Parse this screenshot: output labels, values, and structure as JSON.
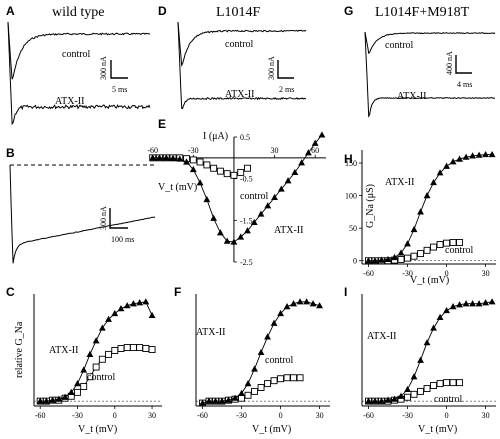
{
  "chart_data": [
    {
      "panel": "A",
      "type": "line",
      "title": "wild type",
      "traces": [
        {
          "name": "control",
          "form": "decay",
          "level": 0.2
        },
        {
          "name": "ATX-II",
          "form": "sustained",
          "level": 0.8
        }
      ],
      "scale_bars": {
        "y": "300 nA",
        "x": "5 ms"
      }
    },
    {
      "panel": "B",
      "type": "line",
      "traces": [
        {
          "form": "long",
          "level": 0.8
        }
      ],
      "zero_line": true,
      "scale_bars": {
        "y": "300 nA",
        "x": "100 ms"
      }
    },
    {
      "panel": "D",
      "type": "line",
      "title": "L1014F",
      "traces": [
        {
          "name": "control",
          "form": "decay",
          "level": 0.2
        },
        {
          "name": "ATX-II",
          "form": "sustained",
          "level": 0.85
        }
      ],
      "scale_bars": {
        "y": "300 nA",
        "x": "2 ms"
      }
    },
    {
      "panel": "G",
      "type": "line",
      "title": "L1014F+M918T",
      "traces": [
        {
          "name": "control",
          "form": "decay",
          "level": 0.05
        },
        {
          "name": "ATX-II",
          "form": "sustained",
          "level": 0.75
        }
      ],
      "scale_bars": {
        "y": "400 nA",
        "x": "4 ms"
      }
    },
    {
      "panel": "E",
      "type": "scatter",
      "xlabel": "V_t (mV)",
      "ylabel": "I (μA)",
      "xlim": [
        -62,
        68
      ],
      "ylim": [
        -2.5,
        0.5
      ],
      "xticks": [
        -60,
        -30,
        0,
        30,
        60
      ],
      "xtick_labels": [
        "-60",
        "-30",
        "0",
        "30",
        "60"
      ],
      "yticks": [
        0.5,
        -0.5,
        -1.5,
        -2.5
      ],
      "ytick_labels": [
        "0.5",
        "-0.5",
        "-1.5",
        "-2.5"
      ],
      "series": [
        {
          "name": "control",
          "marker": "open-square",
          "x": [
            -60,
            -55,
            -50,
            -45,
            -40,
            -35,
            -30,
            -25,
            -20,
            -15,
            -10,
            -5,
            0,
            5,
            10
          ],
          "y": [
            0,
            0,
            0,
            0,
            0,
            -0.02,
            -0.05,
            -0.1,
            -0.17,
            -0.25,
            -0.32,
            -0.38,
            -0.42,
            -0.35,
            -0.25
          ]
        },
        {
          "name": "ATX-II",
          "marker": "filled-triangle",
          "x": [
            -60,
            -55,
            -50,
            -45,
            -40,
            -35,
            -30,
            -25,
            -20,
            -15,
            -10,
            -5,
            0,
            5,
            10,
            15,
            20,
            25,
            30,
            35,
            40,
            45,
            50,
            55,
            60,
            65
          ],
          "y": [
            0,
            0,
            0,
            -0.01,
            -0.03,
            -0.1,
            -0.28,
            -0.6,
            -1.0,
            -1.45,
            -1.8,
            -2.0,
            -2.02,
            -1.9,
            -1.75,
            -1.55,
            -1.35,
            -1.15,
            -0.95,
            -0.75,
            -0.55,
            -0.35,
            -0.12,
            0.12,
            0.35,
            0.55
          ]
        }
      ]
    },
    {
      "panel": "C",
      "type": "scatter",
      "xlabel": "V_t (mV)",
      "ylabel": "relative G_Na",
      "xlim": [
        -65,
        38
      ],
      "ylim": [
        -0.05,
        1.1
      ],
      "xticks": [
        -60,
        -30,
        0,
        30
      ],
      "xtick_labels": [
        "-60",
        "-30",
        "0",
        "30"
      ],
      "series": [
        {
          "name": "control",
          "marker": "open-square",
          "x": [
            -60,
            -55,
            -50,
            -45,
            -40,
            -35,
            -30,
            -25,
            -20,
            -15,
            -10,
            -5,
            0,
            5,
            10,
            15,
            20,
            25,
            30
          ],
          "y": [
            0,
            0,
            0.01,
            0.01,
            0.03,
            0.05,
            0.09,
            0.15,
            0.25,
            0.35,
            0.43,
            0.48,
            0.52,
            0.54,
            0.55,
            0.55,
            0.55,
            0.54,
            0.53
          ]
        },
        {
          "name": "ATX-II",
          "marker": "filled-triangle",
          "x": [
            -60,
            -55,
            -50,
            -45,
            -40,
            -35,
            -30,
            -25,
            -20,
            -15,
            -10,
            -5,
            0,
            5,
            10,
            15,
            20,
            25,
            30
          ],
          "y": [
            0,
            0,
            0.01,
            0.02,
            0.04,
            0.09,
            0.18,
            0.32,
            0.48,
            0.62,
            0.75,
            0.84,
            0.9,
            0.95,
            0.98,
            1.0,
            1.01,
            1.02,
            0.88
          ]
        }
      ]
    },
    {
      "panel": "F",
      "type": "scatter",
      "xlabel": "V_t (mV)",
      "xlim": [
        -65,
        38
      ],
      "ylim": [
        -0.05,
        1.1
      ],
      "xticks": [
        -60,
        -30,
        0,
        30
      ],
      "xtick_labels": [
        "-60",
        "-30",
        "0",
        "30"
      ],
      "series": [
        {
          "name": "control",
          "marker": "open-square",
          "x": [
            -60,
            -55,
            -50,
            -45,
            -40,
            -35,
            -30,
            -25,
            -20,
            -15,
            -10,
            -5,
            0,
            5,
            10,
            15
          ],
          "y": [
            -0.02,
            0,
            0,
            0,
            0.01,
            0.02,
            0.03,
            0.06,
            0.1,
            0.14,
            0.18,
            0.21,
            0.23,
            0.24,
            0.24,
            0.24
          ]
        },
        {
          "name": "ATX-II",
          "marker": "filled-triangle",
          "x": [
            -60,
            -55,
            -50,
            -45,
            -40,
            -35,
            -30,
            -25,
            -20,
            -15,
            -10,
            -5,
            0,
            5,
            10,
            15,
            20,
            25,
            30
          ],
          "y": [
            -0.02,
            0,
            0,
            0,
            0.01,
            0.03,
            0.08,
            0.18,
            0.33,
            0.5,
            0.66,
            0.8,
            0.9,
            0.97,
            1.0,
            1.02,
            1.02,
            1.0,
            0.98
          ]
        }
      ]
    },
    {
      "panel": "H",
      "type": "scatter",
      "xlabel": "V_t (mV)",
      "ylabel": "G_Na (μS)",
      "xlim": [
        -65,
        38
      ],
      "ylim": [
        -5,
        170
      ],
      "xticks": [
        -60,
        -30,
        0,
        30
      ],
      "xtick_labels": [
        "-60",
        "-30",
        "0",
        "30"
      ],
      "yticks": [
        0,
        50,
        100,
        150
      ],
      "ytick_labels": [
        "0",
        "50",
        "100",
        "150"
      ],
      "series": [
        {
          "name": "control",
          "marker": "open-square",
          "x": [
            -60,
            -55,
            -50,
            -45,
            -40,
            -35,
            -30,
            -25,
            -20,
            -15,
            -10,
            -5,
            0,
            5,
            10
          ],
          "y": [
            0,
            0,
            0,
            0,
            1,
            2,
            4,
            7,
            11,
            16,
            21,
            25,
            27,
            28,
            28
          ]
        },
        {
          "name": "ATX-II",
          "marker": "filled-triangle",
          "x": [
            -60,
            -55,
            -50,
            -45,
            -40,
            -35,
            -30,
            -25,
            -20,
            -15,
            -10,
            -5,
            0,
            5,
            10,
            15,
            20,
            25,
            30,
            35
          ],
          "y": [
            0,
            0,
            1,
            2,
            5,
            12,
            26,
            48,
            75,
            100,
            120,
            135,
            145,
            152,
            156,
            159,
            161,
            162,
            163,
            163
          ]
        }
      ]
    },
    {
      "panel": "I",
      "type": "scatter",
      "xlabel": "V_t (mV)",
      "xlim": [
        -65,
        38
      ],
      "ylim": [
        -0.05,
        1.1
      ],
      "xticks": [
        -60,
        -30,
        0,
        30
      ],
      "xtick_labels": [
        "-60",
        "-30",
        "0",
        "30"
      ],
      "series": [
        {
          "name": "control",
          "marker": "open-square",
          "x": [
            -60,
            -55,
            -50,
            -45,
            -40,
            -35,
            -30,
            -25,
            -20,
            -15,
            -10,
            -5,
            0,
            5,
            10
          ],
          "y": [
            0,
            0,
            0,
            0,
            0.01,
            0.02,
            0.04,
            0.07,
            0.1,
            0.13,
            0.16,
            0.18,
            0.19,
            0.19,
            0.19
          ]
        },
        {
          "name": "ATX-II",
          "marker": "filled-triangle",
          "x": [
            -60,
            -55,
            -50,
            -45,
            -40,
            -35,
            -30,
            -25,
            -20,
            -15,
            -10,
            -5,
            0,
            5,
            10,
            15,
            20,
            25,
            30,
            35
          ],
          "y": [
            0,
            0,
            0,
            0.01,
            0.02,
            0.05,
            0.12,
            0.25,
            0.42,
            0.6,
            0.75,
            0.86,
            0.93,
            0.97,
            0.99,
            1.0,
            1.0,
            1.0,
            1.01,
            1.02
          ]
        }
      ]
    }
  ],
  "labels": {
    "panel_a": "A",
    "panel_b": "B",
    "panel_c": "C",
    "panel_d": "D",
    "panel_e": "E",
    "panel_f": "F",
    "panel_g": "G",
    "panel_h": "H",
    "panel_i": "I",
    "control": "control",
    "atx": "ATX-II",
    "tick_60": "60",
    "sc_a_y": "300 nA",
    "sc_a_x": "5 ms",
    "sc_b_y": "300 nA",
    "sc_b_x": "100 ms",
    "sc_d_y": "300 nA",
    "sc_d_x": "2 ms",
    "sc_g_y": "400 nA",
    "sc_g_x": "4 ms"
  }
}
